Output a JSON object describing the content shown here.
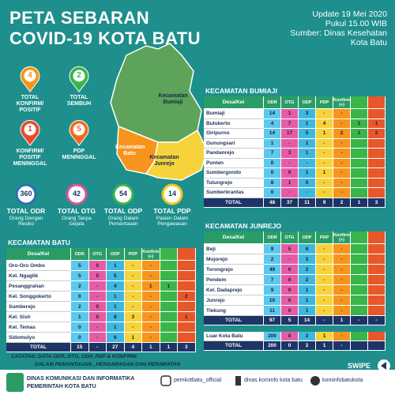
{
  "header_title": [
    "PETA SEBARAN",
    "COVID-19 KOTA BATU"
  ],
  "info": [
    "Update 19 Mei 2020",
    "Pukul 15.00 WIB",
    "Sumber: Dinas Kesehatan",
    "Kota Batu"
  ],
  "map_labels": [
    "Kecamatan Bumiaji",
    "Kecamatan Batu",
    "Kecamatan Junrejo"
  ],
  "pins": [
    {
      "value": "4",
      "label": "TOTAL KONFIRM/ POSITIF",
      "color": "#f7941d"
    },
    {
      "value": "2",
      "label": "TOTAL SEMBUH",
      "color": "#3ab54a"
    },
    {
      "value": "1",
      "label": "KONFIRM/ POSITIF MENINGGAL",
      "color": "#e84a2a"
    },
    {
      "value": "5",
      "label": "PDP MENINGGAL",
      "color": "#f26b21"
    }
  ],
  "circles": [
    {
      "value": "360",
      "label": "TOTAL ODR",
      "sub": "Orang Dengan Resiko",
      "color": "#2a6fb5"
    },
    {
      "value": "42",
      "label": "TOTAL OTG",
      "sub": "Orang Tanpa Gejala",
      "color": "#e0509c"
    },
    {
      "value": "54",
      "label": "TOTAL ODP",
      "sub": "Orang Dalam Pemantauan",
      "color": "#3ab54a"
    },
    {
      "value": "14",
      "label": "TOTAL PDP",
      "sub": "Pasien Dalam Pengawasan",
      "color": "#f6c31b"
    }
  ],
  "table_header": [
    "Desa/Kel",
    "ODR",
    "OTG",
    "ODP",
    "PDP",
    "Konfirm (+)"
  ],
  "tables": {
    "bumiaji": {
      "title": "KECAMATAN BUMIAJI",
      "rows": [
        {
          "name": "Bumiaji",
          "cells": [
            "14",
            "1",
            "3",
            "-",
            "-",
            null,
            null
          ]
        },
        {
          "name": "Bulukerto",
          "cells": [
            "4",
            "7",
            "1",
            "4",
            "-",
            "1",
            "1"
          ]
        },
        {
          "name": "Giripurno",
          "cells": [
            "14",
            "17",
            "5",
            "1",
            "2",
            "1",
            "2"
          ]
        },
        {
          "name": "Gunungsari",
          "cells": [
            "1",
            "-",
            "1",
            "-",
            "-",
            null,
            null
          ]
        },
        {
          "name": "Pandanrejo",
          "cells": [
            "7",
            "3",
            "1",
            "-",
            "-",
            null,
            null
          ]
        },
        {
          "name": "Punten",
          "cells": [
            "0",
            "-",
            "-",
            "-",
            "-",
            null,
            null
          ]
        },
        {
          "name": "Sumbergondo",
          "cells": [
            "0",
            "9",
            "1",
            "1",
            "-",
            null,
            null
          ]
        },
        {
          "name": "Tulungrejo",
          "cells": [
            "8",
            "1",
            "0",
            "-",
            "-",
            null,
            null
          ]
        },
        {
          "name": "Sumberbrantas",
          "cells": [
            "0",
            "-",
            "-",
            "-",
            "-",
            null,
            null
          ]
        }
      ],
      "total": {
        "name": "TOTAL",
        "cells": [
          "48",
          "37",
          "11",
          "9",
          "2",
          "1",
          "3"
        ]
      }
    },
    "batu": {
      "title": "KECAMATAN BATU",
      "rows": [
        {
          "name": "Oro-Oro Ombo",
          "cells": [
            "5",
            "0",
            "1",
            "-",
            "-",
            null,
            null
          ]
        },
        {
          "name": "Kel. Ngaglik",
          "cells": [
            "5",
            "0",
            "5",
            "-",
            "-",
            null,
            null
          ]
        },
        {
          "name": "Pesanggrahan",
          "cells": [
            "2",
            "-",
            "4",
            "-",
            "1",
            "1",
            null
          ]
        },
        {
          "name": "Kel. Songgokerto",
          "cells": [
            "0",
            "-",
            "1",
            "-",
            "-",
            null,
            "2"
          ]
        },
        {
          "name": "Sumberejo",
          "cells": [
            "2",
            "0",
            "1",
            "-",
            "-",
            null,
            null
          ]
        },
        {
          "name": "Kel. Sisir",
          "cells": [
            "1",
            "0",
            "8",
            "3",
            "-",
            null,
            "1"
          ]
        },
        {
          "name": "Kel. Temas",
          "cells": [
            "0",
            "-",
            "1",
            "-",
            "-",
            null,
            null
          ]
        },
        {
          "name": "Sidomulyo",
          "cells": [
            "0",
            "-",
            "6",
            "1",
            "-",
            null,
            null
          ]
        }
      ],
      "total": {
        "name": "TOTAL",
        "cells": [
          "15",
          "-",
          "27",
          "4",
          "1",
          "1",
          "3"
        ]
      }
    },
    "junrejo": {
      "title": "KECAMATAN JUNREJO",
      "rows": [
        {
          "name": "Beji",
          "cells": [
            "9",
            "5",
            "6",
            "-",
            "-",
            null,
            null
          ]
        },
        {
          "name": "Mojorejo",
          "cells": [
            "2",
            "-",
            "3",
            "-",
            "-",
            null,
            null
          ]
        },
        {
          "name": "Torongrejo",
          "cells": [
            "49",
            "0",
            "2",
            "-",
            "-",
            null,
            null
          ]
        },
        {
          "name": "Pendem",
          "cells": [
            "7",
            "0",
            "2",
            "-",
            "-",
            null,
            null
          ]
        },
        {
          "name": "Kel. Dadaprejo",
          "cells": [
            "9",
            "0",
            "1",
            "-",
            "-",
            null,
            null
          ]
        },
        {
          "name": "Junrejo",
          "cells": [
            "10",
            "0",
            "1",
            "-",
            "-",
            null,
            null
          ]
        },
        {
          "name": "Tlekung",
          "cells": [
            "11",
            "0",
            "1",
            "-",
            "-",
            null,
            null
          ]
        }
      ],
      "total": {
        "name": "TOTAL",
        "cells": [
          "97",
          "5",
          "14",
          "-",
          "1",
          "-",
          "-"
        ]
      }
    },
    "luar": {
      "rows": [
        {
          "name": "Luar Kota Batu",
          "cells": [
            "200",
            "0",
            "2",
            "1",
            "-",
            null,
            null
          ]
        }
      ],
      "total": {
        "name": "TOTAL",
        "cells": [
          "200",
          "0",
          "2",
          "1",
          "-",
          null,
          null
        ]
      }
    }
  },
  "notes": [
    "CATATAN: DATA ODR, OTG, ODP, PDP & KONFIRM",
    "DALAM PEMANTAUAN , PENGAWASAN DAN PERAWATAN"
  ],
  "footer": {
    "org": [
      "DINAS KOMUNIKASI DAN INFORMATIKA",
      "PEMERINTAH KOTA BATU"
    ],
    "instagram": "pemkotbatu_official",
    "facebook": "dinas kominfo kota batu",
    "twitter": "kominfobatukota",
    "swipe": "SWIPE"
  }
}
